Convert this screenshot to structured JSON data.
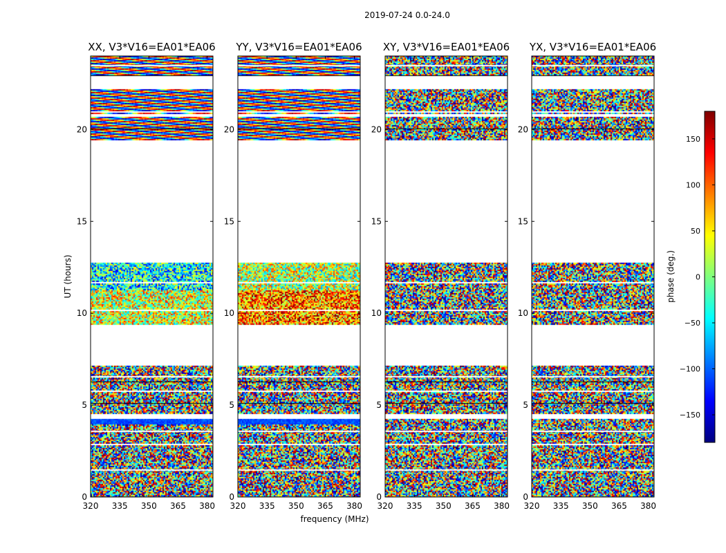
{
  "figure": {
    "suptitle": "2019-07-24 0.0-24.0",
    "xlabel": "frequency (MHz)",
    "ylabel": "UT (hours)"
  },
  "colorbar": {
    "label": "phase (deg.)",
    "min": -180,
    "max": 180,
    "ticks": [
      150,
      100,
      50,
      0,
      -50,
      -100,
      -150
    ],
    "tick_labels": [
      "150",
      "100",
      "50",
      "0",
      "−50",
      "−100",
      "−150"
    ],
    "colormap": "jet",
    "colors": [
      "#00007f",
      "#0000ff",
      "#007fff",
      "#00ffff",
      "#7fff7f",
      "#ffff00",
      "#ff7f00",
      "#ff0000",
      "#7f0000"
    ]
  },
  "chart_data": [
    {
      "type": "heatmap",
      "title": "XX, V3*V16=EA01*EA06",
      "xlabel": "frequency (MHz)",
      "ylabel": "UT (hours)",
      "xlim": [
        320,
        383
      ],
      "ylim": [
        0,
        24
      ],
      "xticks": [
        320,
        335,
        350,
        365,
        380
      ],
      "yticks": [
        0,
        5,
        10,
        15,
        20
      ],
      "data_bands_hours": [
        [
          0.0,
          4.25
        ],
        [
          4.55,
          7.15
        ],
        [
          9.4,
          12.75
        ],
        [
          19.4,
          20.7
        ],
        [
          20.85,
          22.2
        ],
        [
          23.0,
          24.0
        ]
      ],
      "gaps_hours": [
        [
          7.15,
          9.4
        ],
        [
          12.75,
          19.4
        ],
        [
          22.2,
          23.0
        ]
      ],
      "fringe_structure": "strong fringes after 20 h",
      "dominant_phase_deg": {
        "early_band": -110,
        "mid_band": 30
      }
    },
    {
      "type": "heatmap",
      "title": "YY, V3*V16=EA01*EA06",
      "xlabel": "frequency (MHz)",
      "ylabel": "",
      "xlim": [
        320,
        383
      ],
      "ylim": [
        0,
        24
      ],
      "xticks": [
        320,
        335,
        350,
        365,
        380
      ],
      "yticks": [
        0,
        5,
        10,
        15,
        20
      ],
      "data_bands_hours": [
        [
          0.0,
          4.25
        ],
        [
          4.55,
          7.15
        ],
        [
          9.4,
          12.75
        ],
        [
          19.4,
          20.7
        ],
        [
          20.85,
          22.2
        ],
        [
          23.0,
          24.0
        ]
      ],
      "gaps_hours": [
        [
          7.15,
          9.4
        ],
        [
          12.75,
          19.4
        ],
        [
          22.2,
          23.0
        ]
      ],
      "fringe_structure": "strong fringes after 20 h",
      "dominant_phase_deg": {
        "early_band": -60,
        "mid_band": 90
      }
    },
    {
      "type": "heatmap",
      "title": "XY, V3*V16=EA01*EA06",
      "xlabel": "frequency (MHz)",
      "ylabel": "",
      "xlim": [
        320,
        383
      ],
      "ylim": [
        0,
        24
      ],
      "xticks": [
        320,
        335,
        350,
        365,
        380
      ],
      "yticks": [
        0,
        5,
        10,
        15,
        20
      ],
      "data_bands_hours": [
        [
          0.0,
          4.25
        ],
        [
          4.55,
          7.15
        ],
        [
          9.4,
          12.75
        ],
        [
          19.4,
          20.7
        ],
        [
          20.85,
          22.2
        ],
        [
          23.0,
          24.0
        ]
      ],
      "gaps_hours": [
        [
          7.15,
          9.4
        ],
        [
          12.75,
          19.4
        ],
        [
          22.2,
          23.0
        ]
      ],
      "fringe_structure": "noise-like",
      "dominant_phase_deg": {
        "early_band": null,
        "mid_band": null
      }
    },
    {
      "type": "heatmap",
      "title": "YX, V3*V16=EA01*EA06",
      "xlabel": "frequency (MHz)",
      "ylabel": "",
      "xlim": [
        320,
        383
      ],
      "ylim": [
        0,
        24
      ],
      "xticks": [
        320,
        335,
        350,
        365,
        380
      ],
      "yticks": [
        0,
        5,
        10,
        15,
        20
      ],
      "data_bands_hours": [
        [
          0.0,
          4.25
        ],
        [
          4.55,
          7.15
        ],
        [
          9.4,
          12.75
        ],
        [
          19.4,
          20.7
        ],
        [
          20.85,
          22.2
        ],
        [
          23.0,
          24.0
        ]
      ],
      "gaps_hours": [
        [
          7.15,
          9.4
        ],
        [
          12.75,
          19.4
        ],
        [
          22.2,
          23.0
        ]
      ],
      "fringe_structure": "noise-like",
      "dominant_phase_deg": {
        "early_band": null,
        "mid_band": null
      }
    }
  ]
}
